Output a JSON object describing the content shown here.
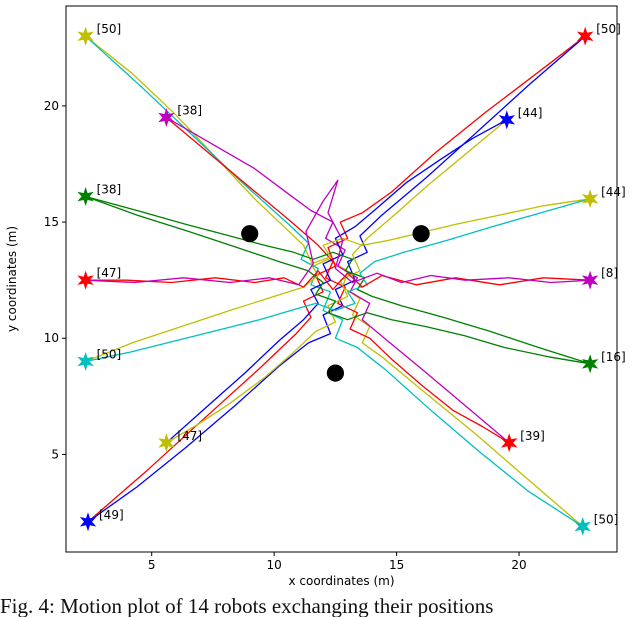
{
  "figure": {
    "caption": "Fig. 4: Motion plot of 14 robots exchanging their positions"
  },
  "chart_data": {
    "type": "line",
    "title": "",
    "xlabel": "x coordinates (m)",
    "ylabel": "y coordinates (m)",
    "xlim": [
      1.5,
      24.0
    ],
    "ylim": [
      0.8,
      24.3
    ],
    "xticks": [
      5,
      10,
      15,
      20
    ],
    "yticks": [
      5,
      10,
      15,
      20
    ],
    "grid": false,
    "legend": "none",
    "frame_color": "#000000",
    "obstacles": {
      "color": "#000000",
      "radius_m": 0.35,
      "centers": [
        [
          9.0,
          14.5
        ],
        [
          16.0,
          14.5
        ],
        [
          12.5,
          8.5
        ]
      ]
    },
    "robots": [
      {
        "label": "[50]",
        "color": "#bfbf00",
        "end": [
          2.3,
          23.0
        ],
        "path": [
          [
            22.6,
            1.9
          ],
          [
            20.5,
            3.8
          ],
          [
            18.2,
            5.9
          ],
          [
            16.0,
            7.8
          ],
          [
            14.4,
            9.2
          ],
          [
            13.6,
            9.8
          ],
          [
            13.9,
            10.5
          ],
          [
            13.2,
            11.0
          ],
          [
            13.5,
            11.7
          ],
          [
            12.8,
            12.2
          ],
          [
            13.0,
            12.9
          ],
          [
            12.2,
            13.4
          ],
          [
            11.6,
            13.1
          ],
          [
            11.2,
            14.0
          ],
          [
            10.4,
            14.8
          ],
          [
            9.2,
            16.0
          ],
          [
            7.6,
            17.8
          ],
          [
            6.0,
            19.6
          ],
          [
            4.2,
            21.4
          ],
          [
            2.3,
            23.0
          ]
        ]
      },
      {
        "label": "[50]",
        "color": "#00bfbf",
        "end": [
          22.6,
          1.9
        ],
        "path": [
          [
            2.3,
            23.0
          ],
          [
            4.6,
            20.8
          ],
          [
            6.8,
            18.6
          ],
          [
            8.8,
            16.6
          ],
          [
            10.6,
            14.9
          ],
          [
            11.4,
            14.1
          ],
          [
            11.1,
            13.4
          ],
          [
            11.8,
            13.0
          ],
          [
            11.5,
            12.3
          ],
          [
            12.3,
            12.0
          ],
          [
            12.0,
            11.2
          ],
          [
            12.8,
            10.8
          ],
          [
            12.5,
            10.0
          ],
          [
            13.4,
            9.6
          ],
          [
            14.6,
            8.6
          ],
          [
            16.4,
            6.9
          ],
          [
            18.4,
            5.1
          ],
          [
            20.4,
            3.4
          ],
          [
            22.6,
            1.9
          ]
        ]
      },
      {
        "label": "[50]",
        "color": "#ff0000",
        "end": [
          22.7,
          23.0
        ],
        "path": [
          [
            2.4,
            2.1
          ],
          [
            4.8,
            4.3
          ],
          [
            7.2,
            6.6
          ],
          [
            9.4,
            8.7
          ],
          [
            10.9,
            10.2
          ],
          [
            11.5,
            10.9
          ],
          [
            11.2,
            11.6
          ],
          [
            12.0,
            12.0
          ],
          [
            11.7,
            12.7
          ],
          [
            12.5,
            13.1
          ],
          [
            12.2,
            13.9
          ],
          [
            13.0,
            14.3
          ],
          [
            12.7,
            15.0
          ],
          [
            13.6,
            15.4
          ],
          [
            14.8,
            16.3
          ],
          [
            16.6,
            18.0
          ],
          [
            18.6,
            19.7
          ],
          [
            20.6,
            21.3
          ],
          [
            22.7,
            23.0
          ]
        ]
      },
      {
        "label": "[49]",
        "color": "#0000ff",
        "end": [
          2.4,
          2.1
        ],
        "path": [
          [
            22.7,
            23.0
          ],
          [
            20.4,
            20.9
          ],
          [
            18.2,
            18.8
          ],
          [
            16.2,
            16.9
          ],
          [
            14.4,
            15.3
          ],
          [
            13.5,
            14.4
          ],
          [
            13.8,
            13.7
          ],
          [
            13.0,
            13.3
          ],
          [
            13.3,
            12.5
          ],
          [
            12.5,
            12.1
          ],
          [
            12.8,
            11.4
          ],
          [
            12.0,
            11.0
          ],
          [
            12.3,
            10.2
          ],
          [
            11.4,
            9.8
          ],
          [
            10.2,
            8.8
          ],
          [
            8.4,
            7.1
          ],
          [
            6.4,
            5.3
          ],
          [
            4.4,
            3.6
          ],
          [
            2.4,
            2.1
          ]
        ]
      },
      {
        "label": "[38]",
        "color": "#bf00bf",
        "end": [
          5.6,
          19.5
        ],
        "path": [
          [
            19.6,
            5.5
          ],
          [
            17.8,
            7.1
          ],
          [
            16.0,
            8.7
          ],
          [
            14.5,
            10.0
          ],
          [
            13.6,
            10.8
          ],
          [
            13.9,
            11.5
          ],
          [
            13.1,
            12.0
          ],
          [
            13.4,
            12.6
          ],
          [
            12.6,
            13.1
          ],
          [
            12.9,
            13.8
          ],
          [
            12.1,
            14.3
          ],
          [
            12.4,
            15.0
          ],
          [
            11.5,
            15.5
          ],
          [
            10.6,
            16.2
          ],
          [
            9.2,
            17.3
          ],
          [
            7.4,
            18.4
          ],
          [
            5.6,
            19.5
          ]
        ]
      },
      {
        "label": "[39]",
        "color": "#ff0000",
        "end": [
          19.6,
          5.5
        ],
        "path": [
          [
            5.6,
            19.5
          ],
          [
            7.3,
            18.0
          ],
          [
            9.0,
            16.5
          ],
          [
            10.6,
            15.1
          ],
          [
            11.8,
            14.0
          ],
          [
            12.4,
            13.3
          ],
          [
            12.1,
            12.6
          ],
          [
            12.9,
            12.2
          ],
          [
            12.6,
            11.5
          ],
          [
            13.4,
            11.1
          ],
          [
            13.1,
            10.4
          ],
          [
            13.9,
            10.0
          ],
          [
            14.8,
            9.1
          ],
          [
            16.0,
            8.0
          ],
          [
            17.3,
            6.9
          ],
          [
            18.5,
            6.2
          ],
          [
            19.6,
            5.5
          ]
        ]
      },
      {
        "label": "[44]",
        "color": "#0000ff",
        "end": [
          19.5,
          19.4
        ],
        "path": [
          [
            5.6,
            5.5
          ],
          [
            7.2,
            7.0
          ],
          [
            8.8,
            8.5
          ],
          [
            10.2,
            9.9
          ],
          [
            11.2,
            10.8
          ],
          [
            11.8,
            11.5
          ],
          [
            11.5,
            12.1
          ],
          [
            12.3,
            12.5
          ],
          [
            12.0,
            13.2
          ],
          [
            12.8,
            13.6
          ],
          [
            12.5,
            14.3
          ],
          [
            13.3,
            14.8
          ],
          [
            14.2,
            15.6
          ],
          [
            15.4,
            16.7
          ],
          [
            16.8,
            17.7
          ],
          [
            18.1,
            18.6
          ],
          [
            19.5,
            19.4
          ]
        ]
      },
      {
        "label": "[47]",
        "color": "#bfbf00",
        "end": [
          5.6,
          5.5
        ],
        "path": [
          [
            19.5,
            19.4
          ],
          [
            17.9,
            18.0
          ],
          [
            16.3,
            16.6
          ],
          [
            14.9,
            15.3
          ],
          [
            13.8,
            14.3
          ],
          [
            13.2,
            13.6
          ],
          [
            13.5,
            12.9
          ],
          [
            12.7,
            12.5
          ],
          [
            13.0,
            11.8
          ],
          [
            12.2,
            11.4
          ],
          [
            12.5,
            10.7
          ],
          [
            11.7,
            10.3
          ],
          [
            10.8,
            9.4
          ],
          [
            9.6,
            8.3
          ],
          [
            8.2,
            7.2
          ],
          [
            6.9,
            6.3
          ],
          [
            5.6,
            5.5
          ]
        ]
      },
      {
        "label": "[38]",
        "color": "#008000",
        "end": [
          2.3,
          16.1
        ],
        "path": [
          [
            22.9,
            8.9
          ],
          [
            20.8,
            9.6
          ],
          [
            18.8,
            10.3
          ],
          [
            16.9,
            10.9
          ],
          [
            15.2,
            11.4
          ],
          [
            14.0,
            11.8
          ],
          [
            13.4,
            12.1
          ],
          [
            13.7,
            12.6
          ],
          [
            12.9,
            12.9
          ],
          [
            13.2,
            13.4
          ],
          [
            12.4,
            13.7
          ],
          [
            11.6,
            13.4
          ],
          [
            10.8,
            13.7
          ],
          [
            9.6,
            14.0
          ],
          [
            8.2,
            14.4
          ],
          [
            6.4,
            14.9
          ],
          [
            4.4,
            15.5
          ],
          [
            2.3,
            16.1
          ]
        ]
      },
      {
        "label": "[16]",
        "color": "#008000",
        "end": [
          22.9,
          8.9
        ],
        "path": [
          [
            2.3,
            16.1
          ],
          [
            4.4,
            15.3
          ],
          [
            6.5,
            14.6
          ],
          [
            8.5,
            13.9
          ],
          [
            10.2,
            13.3
          ],
          [
            11.4,
            12.9
          ],
          [
            12.0,
            12.4
          ],
          [
            11.7,
            11.9
          ],
          [
            12.5,
            11.6
          ],
          [
            12.2,
            11.1
          ],
          [
            13.0,
            10.8
          ],
          [
            13.8,
            11.1
          ],
          [
            14.8,
            10.8
          ],
          [
            16.2,
            10.5
          ],
          [
            17.8,
            10.1
          ],
          [
            19.4,
            9.6
          ],
          [
            21.2,
            9.2
          ],
          [
            22.9,
            8.9
          ]
        ]
      },
      {
        "label": "[44]",
        "color": "#bfbf00",
        "end": [
          22.9,
          16.0
        ],
        "path": [
          [
            2.3,
            9.0
          ],
          [
            4.2,
            9.8
          ],
          [
            6.2,
            10.5
          ],
          [
            8.2,
            11.2
          ],
          [
            10.0,
            11.8
          ],
          [
            11.2,
            12.2
          ],
          [
            11.8,
            12.7
          ],
          [
            11.5,
            13.2
          ],
          [
            12.3,
            13.5
          ],
          [
            12.0,
            14.0
          ],
          [
            12.8,
            14.3
          ],
          [
            13.6,
            14.0
          ],
          [
            14.6,
            14.2
          ],
          [
            15.8,
            14.5
          ],
          [
            17.4,
            14.9
          ],
          [
            19.2,
            15.3
          ],
          [
            21.0,
            15.7
          ],
          [
            22.9,
            16.0
          ]
        ]
      },
      {
        "label": "[50]",
        "color": "#00bfbf",
        "end": [
          2.3,
          9.0
        ],
        "path": [
          [
            22.9,
            16.0
          ],
          [
            20.9,
            15.4
          ],
          [
            18.9,
            14.8
          ],
          [
            17.0,
            14.2
          ],
          [
            15.3,
            13.7
          ],
          [
            14.1,
            13.3
          ],
          [
            13.5,
            12.8
          ],
          [
            13.8,
            12.3
          ],
          [
            13.0,
            12.0
          ],
          [
            13.3,
            11.5
          ],
          [
            12.5,
            11.2
          ],
          [
            11.7,
            11.5
          ],
          [
            10.7,
            11.2
          ],
          [
            9.4,
            10.8
          ],
          [
            7.9,
            10.4
          ],
          [
            6.0,
            9.9
          ],
          [
            4.1,
            9.4
          ],
          [
            2.3,
            9.0
          ]
        ]
      },
      {
        "label": "[47]",
        "color": "#ff0000",
        "end": [
          2.3,
          12.5
        ],
        "path": [
          [
            22.9,
            12.5
          ],
          [
            21.0,
            12.6
          ],
          [
            19.2,
            12.3
          ],
          [
            17.4,
            12.6
          ],
          [
            15.8,
            12.3
          ],
          [
            14.4,
            12.7
          ],
          [
            13.6,
            12.2
          ],
          [
            13.0,
            12.8
          ],
          [
            12.4,
            12.1
          ],
          [
            11.8,
            12.9
          ],
          [
            11.2,
            12.2
          ],
          [
            10.4,
            12.6
          ],
          [
            9.2,
            12.4
          ],
          [
            7.6,
            12.6
          ],
          [
            5.8,
            12.4
          ],
          [
            4.0,
            12.5
          ],
          [
            2.3,
            12.5
          ]
        ]
      },
      {
        "label": "[8]",
        "color": "#bf00bf",
        "end": [
          22.9,
          12.5
        ],
        "path": [
          [
            2.3,
            12.5
          ],
          [
            4.3,
            12.4
          ],
          [
            6.3,
            12.6
          ],
          [
            8.2,
            12.4
          ],
          [
            9.8,
            12.6
          ],
          [
            11.0,
            12.3
          ],
          [
            11.6,
            13.2
          ],
          [
            11.3,
            14.6
          ],
          [
            12.0,
            15.9
          ],
          [
            12.6,
            16.8
          ],
          [
            12.2,
            15.4
          ],
          [
            12.8,
            14.2
          ],
          [
            12.5,
            13.0
          ],
          [
            13.2,
            12.4
          ],
          [
            14.2,
            12.8
          ],
          [
            15.2,
            12.4
          ],
          [
            16.4,
            12.7
          ],
          [
            17.8,
            12.5
          ],
          [
            19.6,
            12.6
          ],
          [
            21.3,
            12.4
          ],
          [
            22.9,
            12.5
          ]
        ]
      }
    ]
  }
}
